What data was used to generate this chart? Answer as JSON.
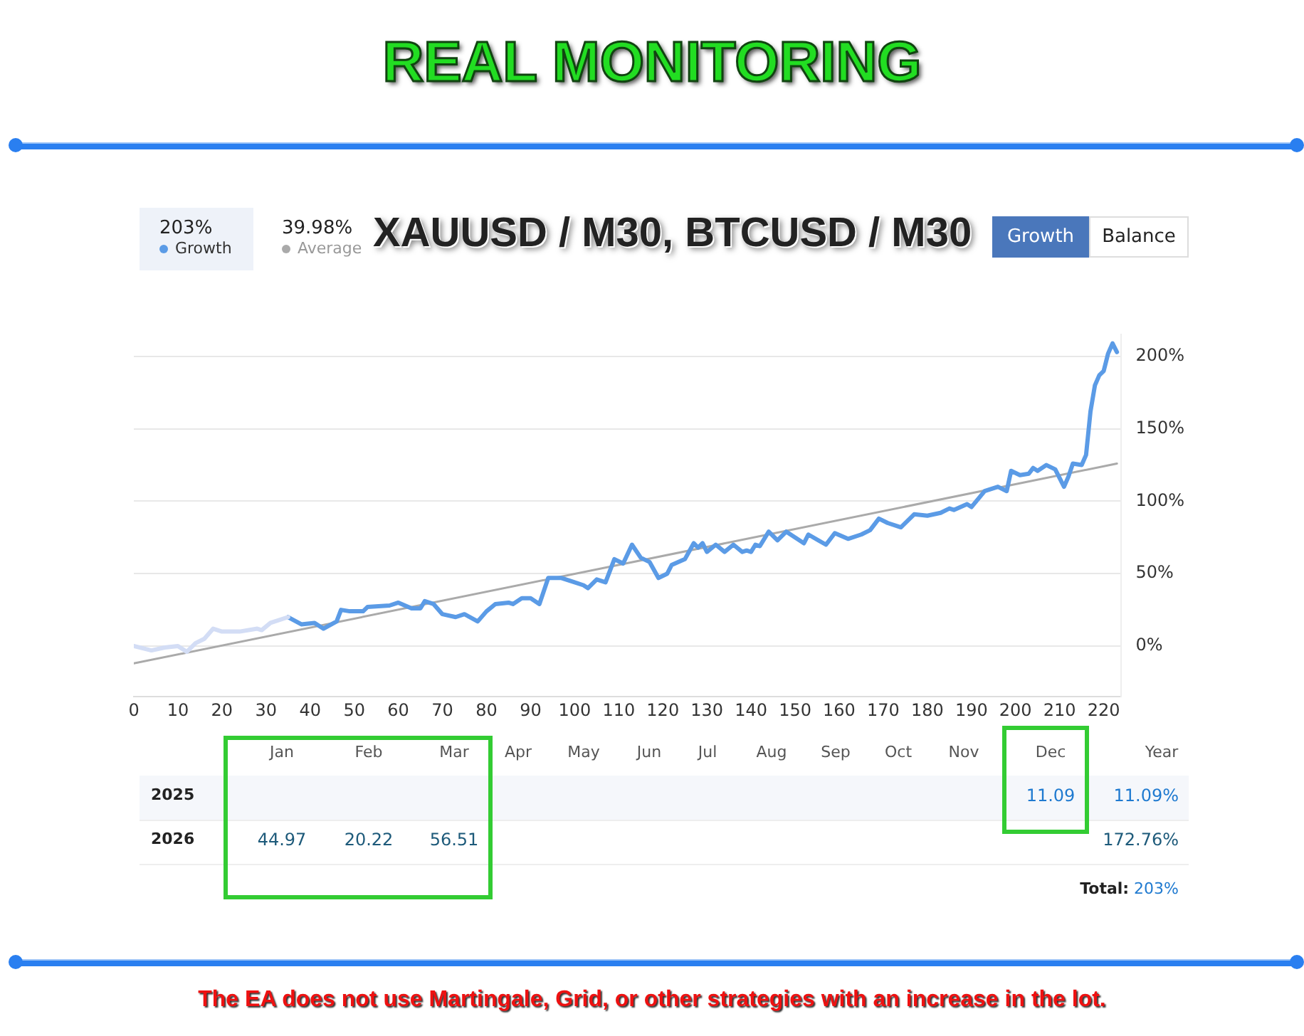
{
  "chart_data": [
    {
      "type": "line",
      "title": "REAL MONITORING",
      "subtitle": "XAUUSD / M30, BTCUSD / M30",
      "series": [
        {
          "color": "#d3ddf5",
          "x": [
            0,
            4,
            7,
            10,
            12,
            14,
            16,
            18,
            20,
            24,
            28,
            29,
            31,
            35
          ],
          "values": [
            0,
            -3,
            -1,
            0,
            -4,
            2,
            5,
            12,
            10,
            10,
            12,
            11,
            16,
            20
          ]
        },
        {
          "name": "Growth",
          "color": "#5b9be6",
          "x": [
            35,
            38,
            41,
            43,
            46,
            47,
            49,
            52,
            53,
            58,
            60,
            63,
            65,
            66,
            68,
            70,
            73,
            75,
            78,
            80,
            82,
            85,
            86,
            88,
            90,
            92,
            94,
            97,
            99,
            102,
            103,
            105,
            107,
            109,
            111,
            113,
            115,
            117,
            119,
            121,
            122,
            125,
            127,
            128,
            129,
            130,
            132,
            134,
            136,
            138,
            139,
            140,
            141,
            142,
            144,
            146,
            148,
            152,
            153,
            157,
            159,
            162,
            165,
            167,
            169,
            171,
            174,
            177,
            180,
            183,
            185,
            186,
            189,
            190,
            193,
            196,
            198,
            199,
            201,
            203,
            204,
            205,
            207,
            209,
            211,
            212,
            213,
            215,
            216,
            217,
            218,
            219,
            220,
            221,
            222,
            223
          ],
          "values": [
            20,
            15,
            16,
            12,
            17,
            25,
            24,
            24,
            27,
            28,
            30,
            26,
            26,
            31,
            29,
            22,
            20,
            22,
            17,
            24,
            29,
            30,
            29,
            33,
            33,
            29,
            47,
            47,
            45,
            42,
            40,
            46,
            44,
            60,
            57,
            70,
            61,
            58,
            47,
            50,
            56,
            60,
            71,
            68,
            71,
            65,
            70,
            65,
            70,
            65,
            66,
            65,
            70,
            69,
            79,
            73,
            79,
            71,
            77,
            70,
            78,
            74,
            77,
            80,
            88,
            85,
            82,
            91,
            90,
            92,
            95,
            94,
            98,
            96,
            107,
            110,
            107,
            121,
            118,
            119,
            123,
            121,
            125,
            122,
            110,
            117,
            126,
            125,
            132,
            162,
            180,
            187,
            190,
            202,
            209,
            203
          ]
        },
        {
          "name": "Average",
          "color": "#aaaaaa",
          "x": [
            0,
            223
          ],
          "values": [
            -12,
            126
          ]
        }
      ],
      "xlim": [
        0,
        224
      ],
      "ylim": [
        -35,
        215
      ],
      "xticks": [
        0,
        10,
        20,
        30,
        40,
        50,
        60,
        70,
        80,
        90,
        100,
        110,
        120,
        130,
        140,
        150,
        160,
        170,
        180,
        190,
        200,
        210,
        220
      ],
      "yticks": [
        {
          "value": 0,
          "label": "0%"
        },
        {
          "value": 50,
          "label": "50%"
        },
        {
          "value": 100,
          "label": "100%"
        },
        {
          "value": 150,
          "label": "150%"
        },
        {
          "value": 200,
          "label": "200%"
        }
      ],
      "grid": "y",
      "legend": "top left",
      "annotations": [
        "203%",
        "39.98%",
        "Balance",
        "The EA does not use Martingale, Grid, or other strategies with an increase in the lot."
      ]
    },
    {
      "type": "other",
      "categories": [
        "Jan",
        "Feb",
        "Mar",
        "Apr",
        "May",
        "Jun",
        "Jul",
        "Aug",
        "Sep",
        "Oct",
        "Nov",
        "Dec",
        "Year"
      ],
      "y_categories": [
        "2025",
        "2026"
      ],
      "cell_labels": [
        [
          null,
          null,
          null,
          null,
          null,
          null,
          null,
          null,
          null,
          null,
          null,
          "11.09",
          "11.09%"
        ],
        [
          "44.97",
          "20.22",
          "56.51",
          null,
          null,
          null,
          null,
          null,
          null,
          null,
          null,
          null,
          "172.76%"
        ]
      ],
      "annotations": [
        "Total:",
        "203%"
      ]
    }
  ]
}
